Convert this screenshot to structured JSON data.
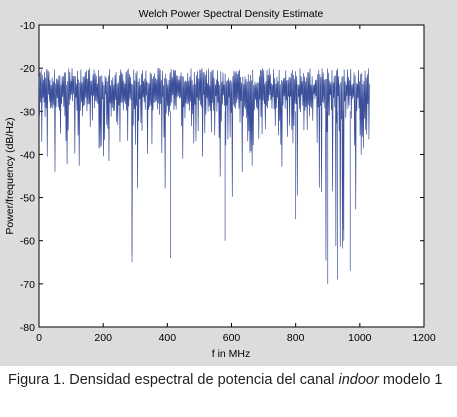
{
  "chart_data": {
    "type": "line",
    "title": "Welch Power Spectral Density Estimate",
    "xlabel": "f in MHz",
    "ylabel": "Power/frequency (dB/Hz)",
    "xlim": [
      0,
      1200
    ],
    "ylim": [
      -80,
      -10
    ],
    "x_ticks": [
      0,
      200,
      400,
      600,
      800,
      1000,
      1200
    ],
    "y_ticks": [
      -10,
      -20,
      -30,
      -40,
      -50,
      -60,
      -70,
      -80
    ],
    "grid": false,
    "line_color": "#3b4f9b",
    "x_range_of_series": [
      0,
      1030
    ],
    "typical_band": [
      -30,
      -20
    ],
    "series": [
      {
        "x": [
          0,
          20,
          35,
          50,
          70,
          90,
          110,
          130,
          150,
          170,
          190,
          210,
          230,
          250,
          270,
          290,
          310,
          330,
          350,
          370,
          390,
          410,
          430,
          450,
          470,
          490,
          510,
          530,
          550,
          570,
          580,
          600,
          620,
          640,
          660,
          680,
          700,
          720,
          740,
          760,
          780,
          800,
          820,
          840,
          860,
          880,
          900,
          915,
          930,
          950,
          970,
          990,
          1010,
          1030
        ],
        "y": [
          -36,
          -44,
          -45,
          -45,
          -44,
          -46,
          -42,
          -44,
          -40,
          -43,
          -41,
          -44,
          -45,
          -39,
          -42,
          -65,
          -48,
          -42,
          -41,
          -40,
          -45,
          -64,
          -45,
          -41,
          -50,
          -41,
          -43,
          -42,
          -49,
          -45,
          -60,
          -51,
          -45,
          -46,
          -42,
          -45,
          -48,
          -54,
          -47,
          -43,
          -48,
          -55,
          -45,
          -50,
          -41,
          -52,
          -70,
          -52,
          -69,
          -60,
          -67,
          -53,
          -39,
          -36
        ]
      }
    ]
  },
  "caption": {
    "lead": "Figura 1. Densidad espectral de potencia del canal ",
    "italic": "indoor",
    "tail": " modelo 1"
  }
}
